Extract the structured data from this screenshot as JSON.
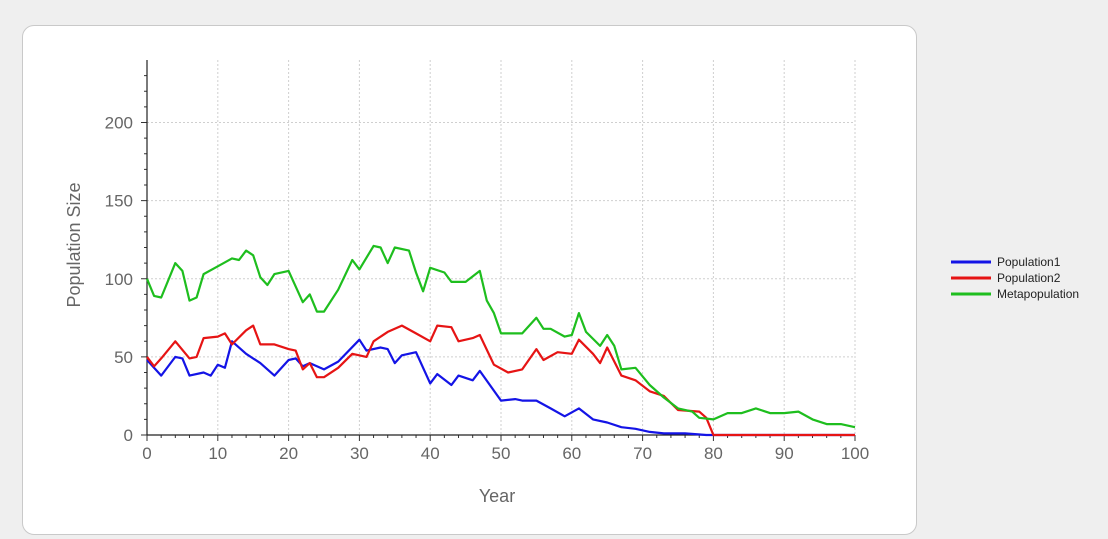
{
  "chart_data": {
    "type": "line",
    "xlabel": "Year",
    "ylabel": "Population Size",
    "xlim": [
      0,
      100
    ],
    "ylim": [
      0,
      240
    ],
    "x_ticks": [
      0,
      10,
      20,
      30,
      40,
      50,
      60,
      70,
      80,
      90,
      100
    ],
    "y_ticks": [
      0,
      50,
      100,
      150,
      200
    ],
    "grid": true,
    "legend_position": "right",
    "series": [
      {
        "name": "Population1",
        "color": "#1414e6",
        "points": [
          [
            0,
            48
          ],
          [
            2,
            38
          ],
          [
            4,
            50
          ],
          [
            5,
            49
          ],
          [
            6,
            38
          ],
          [
            8,
            40
          ],
          [
            9,
            38
          ],
          [
            10,
            45
          ],
          [
            11,
            43
          ],
          [
            12,
            60
          ],
          [
            14,
            52
          ],
          [
            16,
            46
          ],
          [
            18,
            38
          ],
          [
            20,
            48
          ],
          [
            21,
            49
          ],
          [
            22,
            44
          ],
          [
            23,
            46
          ],
          [
            25,
            42
          ],
          [
            27,
            47
          ],
          [
            30,
            61
          ],
          [
            31,
            54
          ],
          [
            33,
            56
          ],
          [
            34,
            55
          ],
          [
            35,
            46
          ],
          [
            36,
            51
          ],
          [
            38,
            53
          ],
          [
            40,
            33
          ],
          [
            41,
            39
          ],
          [
            43,
            32
          ],
          [
            44,
            38
          ],
          [
            46,
            35
          ],
          [
            47,
            41
          ],
          [
            50,
            22
          ],
          [
            52,
            23
          ],
          [
            53,
            22
          ],
          [
            55,
            22
          ],
          [
            57,
            17
          ],
          [
            59,
            12
          ],
          [
            61,
            17
          ],
          [
            63,
            10
          ],
          [
            65,
            8
          ],
          [
            67,
            5
          ],
          [
            69,
            4
          ],
          [
            71,
            2
          ],
          [
            73,
            1
          ],
          [
            76,
            1
          ],
          [
            79,
            0
          ],
          [
            85,
            0
          ],
          [
            100,
            0
          ]
        ]
      },
      {
        "name": "Population2",
        "color": "#e61414",
        "points": [
          [
            0,
            50
          ],
          [
            1,
            44
          ],
          [
            2,
            49
          ],
          [
            4,
            60
          ],
          [
            6,
            49
          ],
          [
            7,
            50
          ],
          [
            8,
            62
          ],
          [
            10,
            63
          ],
          [
            11,
            65
          ],
          [
            12,
            58
          ],
          [
            14,
            67
          ],
          [
            15,
            70
          ],
          [
            16,
            58
          ],
          [
            18,
            58
          ],
          [
            20,
            55
          ],
          [
            21,
            54
          ],
          [
            22,
            42
          ],
          [
            23,
            46
          ],
          [
            24,
            37
          ],
          [
            25,
            37
          ],
          [
            27,
            43
          ],
          [
            29,
            52
          ],
          [
            31,
            50
          ],
          [
            32,
            60
          ],
          [
            34,
            66
          ],
          [
            36,
            70
          ],
          [
            38,
            65
          ],
          [
            40,
            60
          ],
          [
            41,
            70
          ],
          [
            43,
            69
          ],
          [
            44,
            60
          ],
          [
            46,
            62
          ],
          [
            47,
            64
          ],
          [
            49,
            45
          ],
          [
            51,
            40
          ],
          [
            53,
            42
          ],
          [
            55,
            55
          ],
          [
            56,
            48
          ],
          [
            58,
            53
          ],
          [
            60,
            52
          ],
          [
            61,
            61
          ],
          [
            63,
            52
          ],
          [
            64,
            46
          ],
          [
            65,
            56
          ],
          [
            67,
            38
          ],
          [
            69,
            35
          ],
          [
            71,
            28
          ],
          [
            73,
            25
          ],
          [
            75,
            16
          ],
          [
            78,
            15
          ],
          [
            79,
            11
          ],
          [
            80,
            0
          ],
          [
            100,
            0
          ]
        ]
      },
      {
        "name": "Metapopulation",
        "color": "#1ebe1e",
        "points": [
          [
            0,
            100
          ],
          [
            1,
            89
          ],
          [
            2,
            88
          ],
          [
            4,
            110
          ],
          [
            5,
            105
          ],
          [
            6,
            86
          ],
          [
            7,
            88
          ],
          [
            8,
            103
          ],
          [
            10,
            108
          ],
          [
            12,
            113
          ],
          [
            13,
            112
          ],
          [
            14,
            118
          ],
          [
            15,
            115
          ],
          [
            16,
            101
          ],
          [
            17,
            96
          ],
          [
            18,
            103
          ],
          [
            20,
            105
          ],
          [
            22,
            85
          ],
          [
            23,
            90
          ],
          [
            24,
            79
          ],
          [
            25,
            79
          ],
          [
            27,
            93
          ],
          [
            29,
            112
          ],
          [
            30,
            106
          ],
          [
            32,
            121
          ],
          [
            33,
            120
          ],
          [
            34,
            110
          ],
          [
            35,
            120
          ],
          [
            37,
            118
          ],
          [
            38,
            104
          ],
          [
            39,
            92
          ],
          [
            40,
            107
          ],
          [
            42,
            104
          ],
          [
            43,
            98
          ],
          [
            45,
            98
          ],
          [
            47,
            105
          ],
          [
            48,
            86
          ],
          [
            49,
            78
          ],
          [
            50,
            65
          ],
          [
            52,
            65
          ],
          [
            53,
            65
          ],
          [
            55,
            75
          ],
          [
            56,
            68
          ],
          [
            57,
            68
          ],
          [
            59,
            63
          ],
          [
            60,
            64
          ],
          [
            61,
            78
          ],
          [
            62,
            66
          ],
          [
            64,
            57
          ],
          [
            65,
            64
          ],
          [
            66,
            57
          ],
          [
            67,
            42
          ],
          [
            69,
            43
          ],
          [
            71,
            32
          ],
          [
            73,
            24
          ],
          [
            75,
            17
          ],
          [
            77,
            15
          ],
          [
            78,
            11
          ],
          [
            80,
            10
          ],
          [
            82,
            14
          ],
          [
            84,
            14
          ],
          [
            86,
            17
          ],
          [
            88,
            14
          ],
          [
            90,
            14
          ],
          [
            92,
            15
          ],
          [
            94,
            10
          ],
          [
            96,
            7
          ],
          [
            98,
            7
          ],
          [
            100,
            5
          ]
        ]
      }
    ]
  }
}
